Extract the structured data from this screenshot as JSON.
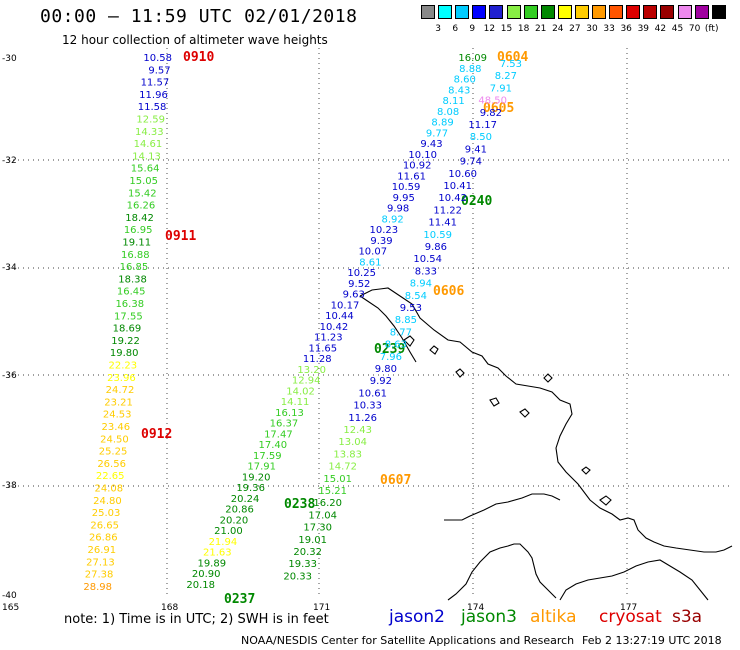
{
  "header": {
    "title": "00:00 – 11:59 UTC 02/01/2018",
    "subtitle": "12 hour collection of altimeter wave heights"
  },
  "legend": {
    "colors": [
      "#888888",
      "#00ffff",
      "#00ccff",
      "#0000ff",
      "#2020d0",
      "#88ee44",
      "#33cc22",
      "#008800",
      "#ffff00",
      "#ffcc00",
      "#ff9900",
      "#ff5500",
      "#dd0000",
      "#bb0000",
      "#990000",
      "#ee88ee",
      "#a000a0",
      "#000000"
    ],
    "labels": [
      "3",
      "6",
      "9",
      "12",
      "15",
      "18",
      "21",
      "24",
      "27",
      "30",
      "33",
      "36",
      "39",
      "42",
      "45",
      "70",
      "(ft)"
    ]
  },
  "axes": {
    "lat_ticks": [
      "-30",
      "-32",
      "-34",
      "-36",
      "-38",
      "-40"
    ],
    "lon_ticks": [
      "165",
      "168",
      "171",
      "174",
      "177"
    ]
  },
  "colors": {
    "jason2": "#0000cc",
    "jason3": "#008800",
    "altika": "#ff9900",
    "cryosat": "#dd0000",
    "s3a": "#990000"
  },
  "passes": {
    "p0910": {
      "time": "0910",
      "color": "#dd0000"
    },
    "p0911": {
      "time": "0911",
      "color": "#dd0000"
    },
    "p0912": {
      "time": "0912",
      "color": "#dd0000"
    },
    "p0604": {
      "time": "0604",
      "color": "#ff9900"
    },
    "p0605": {
      "time": "0605",
      "color": "#ff9900"
    },
    "p0606": {
      "time": "0606",
      "color": "#ff9900"
    },
    "p0607": {
      "time": "0607",
      "color": "#ff9900"
    },
    "p0240": {
      "time": "0240",
      "color": "#008800"
    },
    "p0239": {
      "time": "0239",
      "color": "#008800"
    },
    "p0238": {
      "time": "0238",
      "color": "#008800"
    },
    "p0237": {
      "time": "0237",
      "color": "#008800"
    }
  },
  "track_values": {
    "track1": {
      "values": [
        "10.58",
        "9.57",
        "11.57",
        "11.96",
        "11.58",
        "12.59",
        "14.33",
        "14.61",
        "14.13",
        "15.64",
        "15.05",
        "15.42",
        "16.26",
        "18.42",
        "16.95",
        "19.11",
        "16.88",
        "16.85",
        "18.38",
        "16.45",
        "16.38",
        "17.55",
        "18.69",
        "19.22",
        "19.80",
        "22.23",
        "23.96",
        "24.72",
        "23.21",
        "24.53",
        "23.46",
        "24.50",
        "25.25",
        "26.56",
        "22.65",
        "24.08",
        "24.80",
        "25.03",
        "26.65",
        "26.86",
        "26.91",
        "27.13",
        "27.38",
        "28.98"
      ],
      "colors": [
        "#0000cc",
        "#0000cc",
        "#0000cc",
        "#0000cc",
        "#0000cc",
        "#88ee44",
        "#88ee44",
        "#88ee44",
        "#88ee44",
        "#33cc22",
        "#33cc22",
        "#33cc22",
        "#33cc22",
        "#008800",
        "#33cc22",
        "#008800",
        "#33cc22",
        "#33cc22",
        "#008800",
        "#33cc22",
        "#33cc22",
        "#33cc22",
        "#008800",
        "#008800",
        "#008800",
        "#ffff00",
        "#ffff00",
        "#ffcc00",
        "#ffcc00",
        "#ffcc00",
        "#ffcc00",
        "#ffcc00",
        "#ffcc00",
        "#ffcc00",
        "#ffff00",
        "#ffcc00",
        "#ffcc00",
        "#ffcc00",
        "#ffcc00",
        "#ffcc00",
        "#ffcc00",
        "#ffcc00",
        "#ffcc00",
        "#ff9900"
      ]
    },
    "track2": {
      "values": [
        "16.09",
        "8.88",
        "8.60",
        "8.43",
        "8.11",
        "8.08",
        "8.89",
        "9.77",
        "9.43",
        "10.10",
        "10.92",
        "11.61",
        "10.59",
        "9.95",
        "9.98",
        "8.92",
        "10.23",
        "9.39",
        "10.07",
        "8.61",
        "10.25",
        "9.52",
        "9.63",
        "10.17",
        "10.44",
        "10.42",
        "11.23",
        "11.65",
        "11.28",
        "13.20",
        "12.94",
        "14.02",
        "14.11",
        "16.13",
        "16.37",
        "17.47",
        "17.40",
        "17.59",
        "17.91",
        "19.20",
        "19.36",
        "20.24",
        "20.86",
        "20.20",
        "21.00",
        "21.94",
        "21.63",
        "19.89",
        "20.90",
        "20.18"
      ],
      "colors": [
        "#008800",
        "#00ccff",
        "#00ccff",
        "#00ccff",
        "#00ccff",
        "#00ccff",
        "#00ccff",
        "#00ccff",
        "#0000cc",
        "#0000cc",
        "#0000cc",
        "#0000cc",
        "#0000cc",
        "#0000cc",
        "#0000cc",
        "#00ccff",
        "#0000cc",
        "#0000cc",
        "#0000cc",
        "#00ccff",
        "#0000cc",
        "#0000cc",
        "#0000cc",
        "#0000cc",
        "#0000cc",
        "#0000cc",
        "#0000cc",
        "#0000cc",
        "#0000cc",
        "#88ee44",
        "#88ee44",
        "#88ee44",
        "#88ee44",
        "#33cc22",
        "#33cc22",
        "#33cc22",
        "#33cc22",
        "#33cc22",
        "#33cc22",
        "#008800",
        "#008800",
        "#008800",
        "#008800",
        "#008800",
        "#008800",
        "#ffff00",
        "#ffff00",
        "#008800",
        "#008800",
        "#008800"
      ]
    },
    "track3": {
      "values": [
        "7.53",
        "8.27",
        "7.91",
        "48.50",
        "9.82",
        "11.17",
        "8.50",
        "9.41",
        "9.74",
        "10.60",
        "10.41",
        "10.42",
        "11.22",
        "11.41",
        "10.59",
        "9.86",
        "10.54",
        "8.33",
        "8.94",
        "8.54",
        "9.53",
        "8.85",
        "8.77",
        "8.63",
        "7.96",
        "9.80",
        "9.92",
        "10.61",
        "10.33",
        "11.26",
        "12.43",
        "13.04",
        "13.83",
        "14.72",
        "15.01",
        "15.21",
        "16.20",
        "17.04",
        "17.30",
        "19.01",
        "20.32",
        "19.33",
        "20.33"
      ],
      "colors": [
        "#00ccff",
        "#00ccff",
        "#00ccff",
        "#ee88ee",
        "#0000cc",
        "#0000cc",
        "#00ccff",
        "#0000cc",
        "#0000cc",
        "#0000cc",
        "#0000cc",
        "#0000cc",
        "#0000cc",
        "#0000cc",
        "#00ccff",
        "#0000cc",
        "#0000cc",
        "#0000cc",
        "#00ccff",
        "#00ccff",
        "#0000cc",
        "#00ccff",
        "#00ccff",
        "#00ccff",
        "#00ccff",
        "#0000cc",
        "#0000cc",
        "#0000cc",
        "#0000cc",
        "#0000cc",
        "#88ee44",
        "#88ee44",
        "#88ee44",
        "#88ee44",
        "#33cc22",
        "#33cc22",
        "#008800",
        "#008800",
        "#008800",
        "#008800",
        "#008800",
        "#008800",
        "#008800"
      ]
    }
  },
  "footer": {
    "note": "note: 1) Time is in UTC; 2) SWH is in feet",
    "jason2": "jason2",
    "jason3": "jason3",
    "altika": "altika",
    "cryosat": "cryosat",
    "s3a": "s3a",
    "credit": "NOAA/NESDIS Center for Satellite Applications and Research",
    "timestamp": "Feb  2 13:27:19 UTC 2018"
  }
}
